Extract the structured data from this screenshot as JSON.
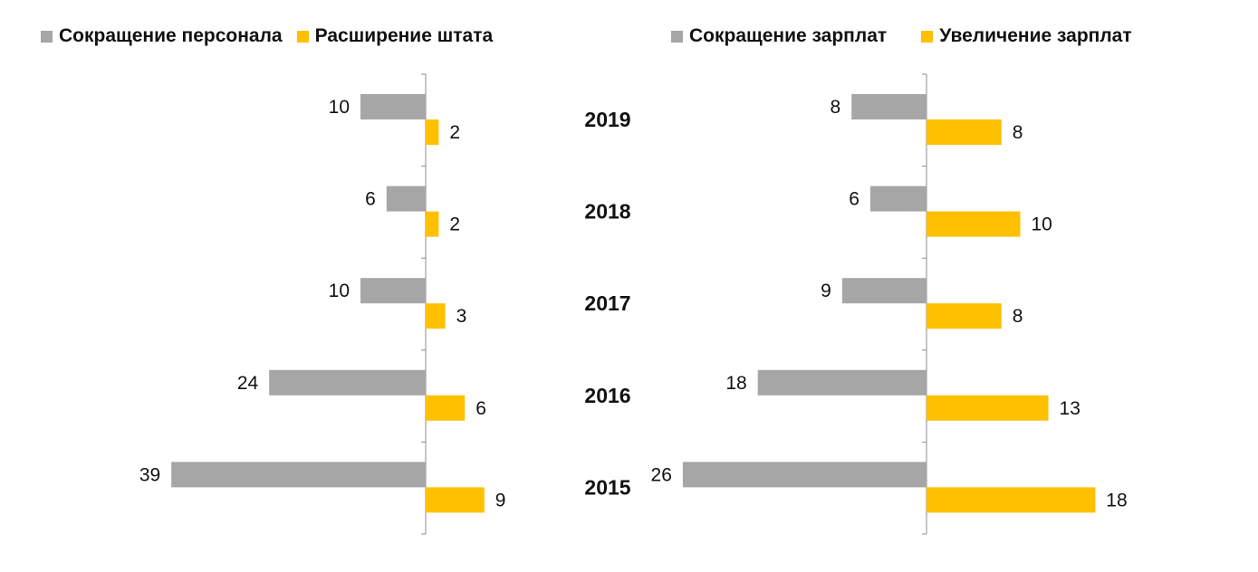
{
  "colors": {
    "reduction": "#a6a6a6",
    "increase": "#ffc000",
    "axis": "#8c8c8c"
  },
  "chart_data": [
    {
      "type": "bar",
      "orientation": "horizontal",
      "categories": [
        "2019",
        "2018",
        "2017",
        "2016",
        "2015"
      ],
      "series": [
        {
          "name": "Сокращение персонала",
          "values": [
            10,
            6,
            10,
            24,
            39
          ]
        },
        {
          "name": "Расширение штата",
          "values": [
            2,
            2,
            3,
            6,
            9
          ]
        }
      ],
      "title": "",
      "xlabel": "",
      "ylabel": "",
      "grid": false,
      "legend": "top"
    },
    {
      "type": "bar",
      "orientation": "horizontal",
      "categories": [
        "2019",
        "2018",
        "2017",
        "2016",
        "2015"
      ],
      "series": [
        {
          "name": "Сокращение зарплат",
          "values": [
            8,
            6,
            9,
            18,
            26
          ]
        },
        {
          "name": "Увеличение зарплат",
          "values": [
            8,
            10,
            8,
            13,
            18
          ]
        }
      ],
      "title": "",
      "xlabel": "",
      "ylabel": "",
      "grid": false,
      "legend": "top"
    }
  ]
}
